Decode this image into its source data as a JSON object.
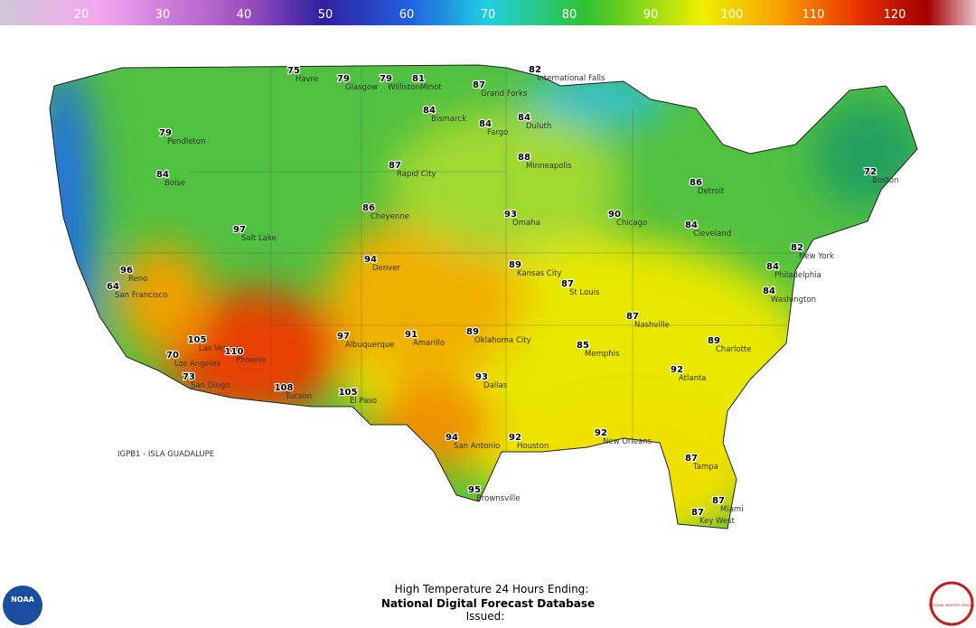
{
  "scale": {
    "ticks": [
      20,
      30,
      40,
      50,
      60,
      70,
      80,
      90,
      100,
      110,
      120
    ]
  },
  "footer": {
    "line1": "High Temperature 24 Hours Ending:",
    "line2": "National Digital Forecast Database",
    "line3": "Issued:"
  },
  "map": {
    "offshore_label": "IGPB1 - ISLA GUADALUPE",
    "stations": [
      {
        "name": "Havre",
        "value": 75
      },
      {
        "name": "Glasgow",
        "value": 79
      },
      {
        "name": "Williston",
        "value": 79
      },
      {
        "name": "Minot",
        "value": 81
      },
      {
        "name": "Grand Forks",
        "value": 87
      },
      {
        "name": "International Falls",
        "value": 82
      },
      {
        "name": "Duluth",
        "value": 84
      },
      {
        "name": "Pendleton",
        "value": 79
      },
      {
        "name": "Boise",
        "value": 84
      },
      {
        "name": "Salt Lake",
        "value": 97
      },
      {
        "name": "Reno",
        "value": 96
      },
      {
        "name": "San Francisco",
        "value": 64
      },
      {
        "name": "Los Angeles",
        "value": 70
      },
      {
        "name": "San Diego",
        "value": 73
      },
      {
        "name": "Las Vegas",
        "value": 105
      },
      {
        "name": "Phoenix",
        "value": 110
      },
      {
        "name": "Tucson",
        "value": 108
      },
      {
        "name": "Albuquerque",
        "value": 97
      },
      {
        "name": "Denver",
        "value": 94
      },
      {
        "name": "Cheyenne",
        "value": 86
      },
      {
        "name": "Rapid City",
        "value": 87
      },
      {
        "name": "Bismarck",
        "value": 84
      },
      {
        "name": "Fargo",
        "value": 84
      },
      {
        "name": "Minneapolis",
        "value": 88
      },
      {
        "name": "Chicago",
        "value": 90
      },
      {
        "name": "Detroit",
        "value": 86
      },
      {
        "name": "Cleveland",
        "value": 84
      },
      {
        "name": "New York",
        "value": 82
      },
      {
        "name": "Boston",
        "value": 72
      },
      {
        "name": "Philadelphia",
        "value": 84
      },
      {
        "name": "Washington",
        "value": 84
      },
      {
        "name": "Atlanta",
        "value": 92
      },
      {
        "name": "Miami",
        "value": 87
      },
      {
        "name": "Key West",
        "value": 87
      },
      {
        "name": "Tampa",
        "value": 87
      },
      {
        "name": "New Orleans",
        "value": 92
      },
      {
        "name": "Houston",
        "value": 92
      },
      {
        "name": "Dallas",
        "value": 93
      },
      {
        "name": "San Antonio",
        "value": 94
      },
      {
        "name": "Brownsville",
        "value": 95
      },
      {
        "name": "Oklahoma City",
        "value": 89
      },
      {
        "name": "Kansas City",
        "value": 89
      },
      {
        "name": "St Louis",
        "value": 87
      },
      {
        "name": "Memphis",
        "value": 85
      },
      {
        "name": "Nashville",
        "value": 87
      },
      {
        "name": "Charlotte",
        "value": 89
      },
      {
        "name": "El Paso",
        "value": 105
      },
      {
        "name": "Amarillo",
        "value": 91
      },
      {
        "name": "Omaha",
        "value": 93
      }
    ]
  },
  "logos": {
    "noaa": "NOAA",
    "nws": "NATIONAL WEATHER SERVICE"
  }
}
